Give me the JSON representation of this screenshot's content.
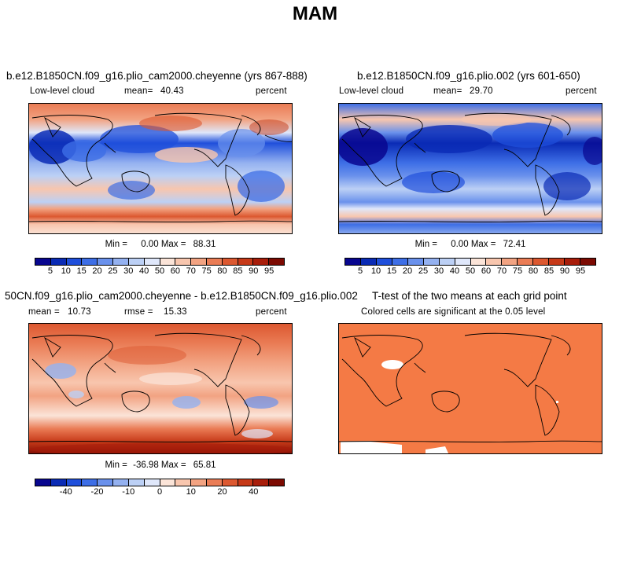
{
  "figure": {
    "title": "MAM"
  },
  "colors": {
    "abs_palette": [
      "#08068f",
      "#0a2bb5",
      "#1f4fdb",
      "#3d6ee6",
      "#6a91ec",
      "#94b1f0",
      "#bcd0f5",
      "#dfe7fa",
      "#fbe4d8",
      "#f8c6ae",
      "#f2a382",
      "#ea7c55",
      "#dc5830",
      "#c63918",
      "#a81d0a",
      "#7c0a02"
    ],
    "diff_palette": [
      "#08068f",
      "#0a2bb5",
      "#1f4fdb",
      "#3d6ee6",
      "#6a91ec",
      "#94b1f0",
      "#bcd0f5",
      "#dfe7fa",
      "#fbe4d8",
      "#f8c6ae",
      "#f2a382",
      "#ea7c55",
      "#dc5830",
      "#c63918",
      "#a81d0a",
      "#7c0a02"
    ],
    "ttest_fill": "#f47a45"
  },
  "panels": [
    {
      "id": "test",
      "title": "b.e12.B1850CN.f09_g16.plio_cam2000.cheyenne (yrs 867-888)",
      "variable": "Low-level cloud",
      "stat_label": "mean=",
      "stat_value": "40.43",
      "units": "percent",
      "min_label": "Min =",
      "min_value": "0.00",
      "max_label": "Max =",
      "max_value": "88.31",
      "colorbar_ticks": [
        "5",
        "10",
        "15",
        "20",
        "25",
        "30",
        "40",
        "50",
        "60",
        "70",
        "75",
        "80",
        "85",
        "90",
        "95"
      ]
    },
    {
      "id": "control",
      "title": "b.e12.B1850CN.f09_g16.plio.002 (yrs 601-650)",
      "variable": "Low-level cloud",
      "stat_label": "mean=",
      "stat_value": "29.70",
      "units": "percent",
      "min_label": "Min =",
      "min_value": "0.00",
      "max_label": "Max =",
      "max_value": "72.41",
      "colorbar_ticks": [
        "5",
        "10",
        "15",
        "20",
        "25",
        "30",
        "40",
        "50",
        "60",
        "70",
        "75",
        "80",
        "85",
        "90",
        "95"
      ]
    },
    {
      "id": "difference",
      "title": "50CN.f09_g16.plio_cam2000.cheyenne - b.e12.B1850CN.f09_g16.plio.002",
      "stat_label": "mean =",
      "stat_value": "10.73",
      "rmse_label": "rmse =",
      "rmse_value": "15.33",
      "units": "percent",
      "min_label": "Min =",
      "min_value": "-36.98",
      "max_label": "Max =",
      "max_value": "65.81",
      "colorbar_ticks": [
        "-40",
        "-20",
        "-10",
        "0",
        "10",
        "20",
        "40"
      ]
    },
    {
      "id": "ttest",
      "title": "T-test of the two means at each grid point",
      "subtitle": "Colored cells are significant at the 0.05 level"
    }
  ]
}
